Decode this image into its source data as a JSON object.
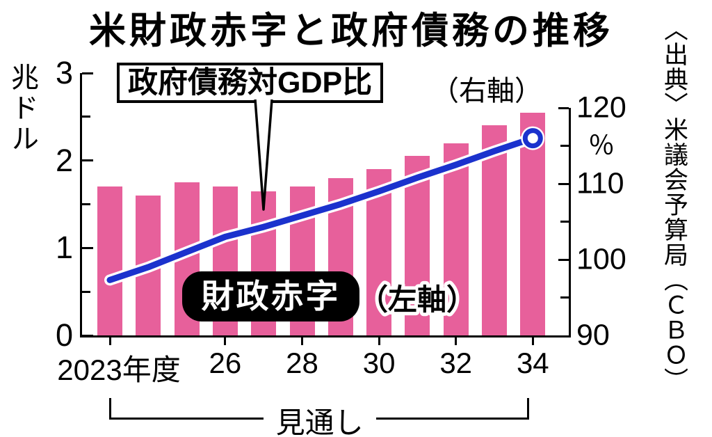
{
  "title": "米財政赤字と政府債務の推移",
  "source": "〈出典〉米議会予算局（ＣＢＯ）",
  "chart_data": {
    "type": "bar+line combo, dual axis",
    "categories": [
      2023,
      2024,
      2025,
      2026,
      2027,
      2028,
      2029,
      2030,
      2031,
      2032,
      2033,
      2034
    ],
    "x_ticks": [
      {
        "year": 2023,
        "label": "2023年度"
      },
      {
        "year": 2026,
        "label": "26"
      },
      {
        "year": 2028,
        "label": "28"
      },
      {
        "year": 2030,
        "label": "30"
      },
      {
        "year": 2032,
        "label": "32"
      },
      {
        "year": 2034,
        "label": "34"
      }
    ],
    "series": [
      {
        "name": "財政赤字",
        "axis_note": "（左軸）",
        "type": "bar",
        "axis": "left",
        "color": "#e7609b",
        "values": [
          1.7,
          1.6,
          1.75,
          1.7,
          1.65,
          1.7,
          1.8,
          1.9,
          2.05,
          2.2,
          2.4,
          2.55
        ]
      },
      {
        "name": "政府債務対GDP比",
        "axis_note": "（右軸）",
        "type": "line",
        "axis": "right",
        "color": "#1b32cd",
        "values": [
          97.3,
          99,
          101,
          103,
          104.3,
          105.8,
          107.3,
          109,
          110.8,
          112.5,
          114.3,
          116
        ]
      }
    ],
    "left_axis": {
      "unit": "兆ドル",
      "min": 0,
      "max": 3,
      "major_ticks": [
        3,
        2,
        1,
        0
      ],
      "minor_step": 0.5
    },
    "right_axis": {
      "unit": "％",
      "min": 90,
      "max": 120,
      "major_ticks": [
        120,
        110,
        100,
        90
      ],
      "minor_step": 5
    },
    "forecast_label": "見通し",
    "forecast_span_years": [
      2023,
      2034
    ]
  }
}
